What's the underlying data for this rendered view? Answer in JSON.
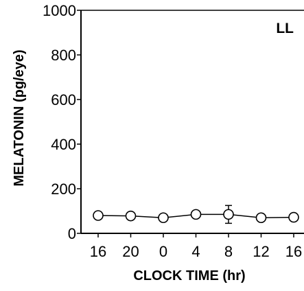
{
  "chart_data": {
    "type": "scatter",
    "panel_label": "LL",
    "xlabel": "CLOCK TIME (hr)",
    "ylabel": "MELATONIN (pg/eye)",
    "ylim": [
      0,
      1000
    ],
    "y_ticks": [
      0,
      200,
      400,
      600,
      800,
      1000
    ],
    "x_ticks": [
      "16",
      "20",
      "0",
      "4",
      "8",
      "12",
      "16"
    ],
    "grid": false,
    "marker": "open-circle",
    "series": [
      {
        "x": [
          "16",
          "20",
          "0",
          "4",
          "8",
          "12",
          "16"
        ],
        "y": [
          80,
          78,
          70,
          85,
          85,
          70,
          72
        ],
        "error": [
          null,
          null,
          null,
          null,
          40,
          null,
          null
        ]
      }
    ]
  }
}
